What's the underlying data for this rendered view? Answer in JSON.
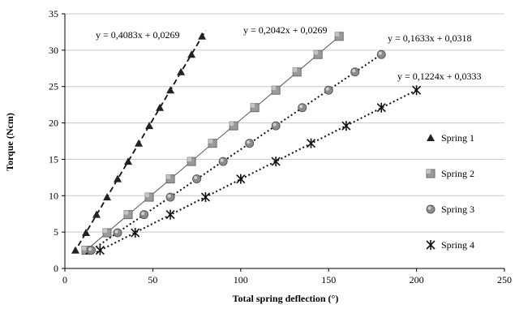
{
  "chart_data": {
    "type": "scatter",
    "title": "",
    "xlabel": "Total spring deflection (°)",
    "ylabel": "Torque (Ncm)",
    "xlim": [
      0,
      250
    ],
    "ylim": [
      0,
      35
    ],
    "x_ticks": [
      "0",
      "50",
      "100",
      "150",
      "200",
      "250"
    ],
    "y_ticks": [
      "0",
      "5",
      "10",
      "15",
      "20",
      "25",
      "30",
      "35"
    ],
    "grid": "horizontal",
    "legend_position": "right",
    "series": [
      {
        "name": "Spring 1",
        "marker": "triangle",
        "line": "dashed",
        "color": "#222222",
        "equation": "y = 0,4083x + 0,0269",
        "fit": {
          "slope": 0.4083,
          "intercept": 0.0269,
          "x_range": [
            5,
            80
          ]
        },
        "points": [
          [
            6,
            2.5
          ],
          [
            12,
            4.9
          ],
          [
            18,
            7.4
          ],
          [
            24,
            9.8
          ],
          [
            30,
            12.3
          ],
          [
            36,
            14.7
          ],
          [
            42,
            17.2
          ],
          [
            48,
            19.6
          ],
          [
            54,
            22.1
          ],
          [
            60,
            24.5
          ],
          [
            66,
            27.0
          ],
          [
            72,
            29.4
          ],
          [
            78,
            31.9
          ]
        ]
      },
      {
        "name": "Spring 2",
        "marker": "square",
        "line": "solid",
        "color": "#888888",
        "equation": "y = 0,2042x + 0,0269",
        "fit": {
          "slope": 0.2042,
          "intercept": 0.0269,
          "x_range": [
            10,
            157
          ]
        },
        "points": [
          [
            12,
            2.5
          ],
          [
            24,
            4.9
          ],
          [
            36,
            7.4
          ],
          [
            48,
            9.8
          ],
          [
            60,
            12.3
          ],
          [
            72,
            14.7
          ],
          [
            84,
            17.2
          ],
          [
            96,
            19.6
          ],
          [
            108,
            22.1
          ],
          [
            120,
            24.5
          ],
          [
            132,
            27.0
          ],
          [
            144,
            29.4
          ],
          [
            156,
            31.9
          ]
        ]
      },
      {
        "name": "Spring 3",
        "marker": "circle",
        "line": "dotted",
        "color": "#777777",
        "equation": "y = 0,1633x + 0,0318",
        "fit": {
          "slope": 0.1633,
          "intercept": 0.0318,
          "x_range": [
            12,
            180
          ]
        },
        "points": [
          [
            15,
            2.5
          ],
          [
            30,
            4.9
          ],
          [
            45,
            7.4
          ],
          [
            60,
            9.8
          ],
          [
            75,
            12.3
          ],
          [
            90,
            14.7
          ],
          [
            105,
            17.2
          ],
          [
            120,
            19.6
          ],
          [
            135,
            22.1
          ],
          [
            150,
            24.5
          ],
          [
            165,
            27.0
          ],
          [
            180,
            29.4
          ]
        ]
      },
      {
        "name": "Spring 4",
        "marker": "star",
        "line": "dotted",
        "color": "#111111",
        "equation": "y = 0,1224x + 0,0333",
        "fit": {
          "slope": 0.1224,
          "intercept": 0.0333,
          "x_range": [
            18,
            200
          ]
        },
        "points": [
          [
            20,
            2.5
          ],
          [
            40,
            4.9
          ],
          [
            60,
            7.4
          ],
          [
            80,
            9.8
          ],
          [
            100,
            12.3
          ],
          [
            120,
            14.7
          ],
          [
            140,
            17.2
          ],
          [
            160,
            19.6
          ],
          [
            180,
            22.1
          ],
          [
            200,
            24.5
          ]
        ]
      }
    ]
  }
}
